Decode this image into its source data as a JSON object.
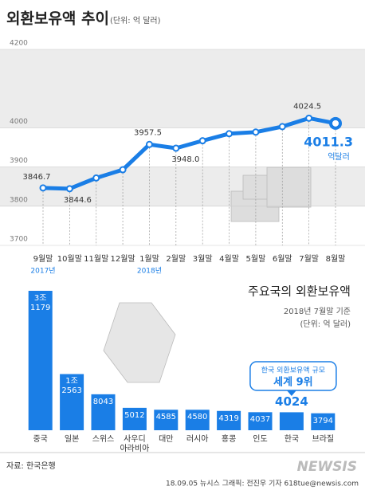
{
  "chart_data": [
    {
      "type": "line",
      "title": "외환보유액 추이",
      "subtitle": "(단위: 억 달러)",
      "categories": [
        "9월말",
        "10월말",
        "11월말",
        "12월말",
        "1월말",
        "2월말",
        "3월말",
        "4월말",
        "5월말",
        "6월말",
        "7월말",
        "8월말"
      ],
      "values": [
        3846.7,
        3844.6,
        3872,
        3893,
        3957.5,
        3948.0,
        3967,
        3985,
        3989,
        4003,
        4024.5,
        4011.3
      ],
      "value_labels": [
        "3846.7",
        "3844.6",
        null,
        null,
        "3957.5",
        "3948.0",
        null,
        null,
        null,
        null,
        "4024.5",
        "4011.3"
      ],
      "color": "#1a7ee6",
      "ylim": [
        3700,
        4200
      ],
      "yticks": [
        3700,
        3800,
        3900,
        4000,
        4200
      ],
      "annotations": [
        "2017년",
        "2018년",
        "억달러"
      ]
    },
    {
      "type": "bar",
      "title": "주요국의 외환보유액",
      "subtitle": "2018년 7월말 기준",
      "unit": "(단위: 억 달러)",
      "categories": [
        "중국",
        "일본",
        "스위스",
        "사우디\n아라비아",
        "대만",
        "러시아",
        "홍콩",
        "인도",
        "한국",
        "브라질"
      ],
      "values": [
        31179,
        12563,
        8043,
        5012,
        4585,
        4580,
        4319,
        4037,
        4024,
        3794
      ],
      "value_labels": [
        "3조\n1179",
        "1조\n2563",
        "8043",
        "5012",
        "4585",
        "4580",
        "4319",
        "4037",
        "4024",
        "3794"
      ],
      "color": "#1a7ee6",
      "highlight": 8,
      "annotations": [
        "한국 외환보유액 규모",
        "세계 9위"
      ]
    }
  ],
  "source": "자료: 한국은행",
  "footer": "18.09.05  뉴시스 그래픽: 전진우 기자 618tue@newsis.com",
  "logo": "NEWSIS"
}
